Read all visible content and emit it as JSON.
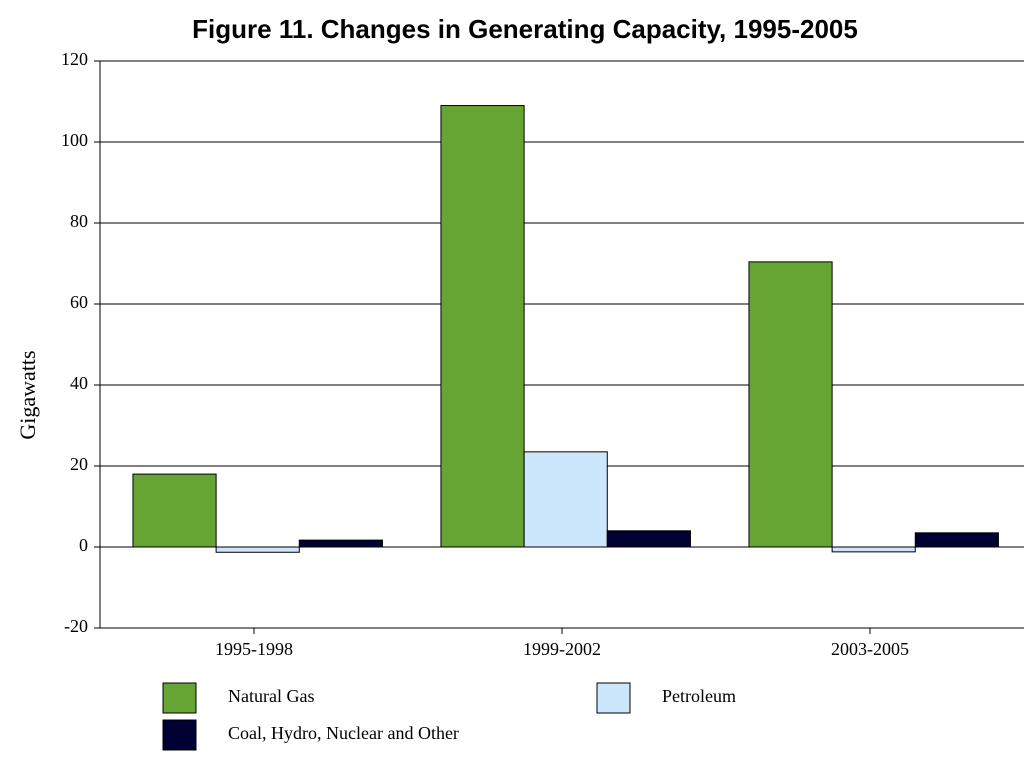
{
  "chart_data": {
    "type": "bar",
    "title": "Figure 11. Changes in Generating Capacity, 1995-2005",
    "y_label": "Gigawatts",
    "categories": [
      "1995-1998",
      "1999-2002",
      "2003-2005"
    ],
    "series": [
      {
        "name": "Natural Gas",
        "color": "#66a533",
        "values": [
          18,
          109,
          70.4
        ]
      },
      {
        "name": "Petroleum",
        "color": "#cce6fb",
        "values": [
          -1.3,
          23.5,
          -1.2
        ]
      },
      {
        "name": "Coal, Hydro, Nuclear and Other",
        "color": "#000033",
        "values": [
          1.7,
          4,
          3.5
        ]
      }
    ],
    "ylim": [
      -20,
      120
    ],
    "yticks": [
      -20,
      0,
      20,
      40,
      60,
      80,
      100,
      120
    ],
    "grid": true
  }
}
